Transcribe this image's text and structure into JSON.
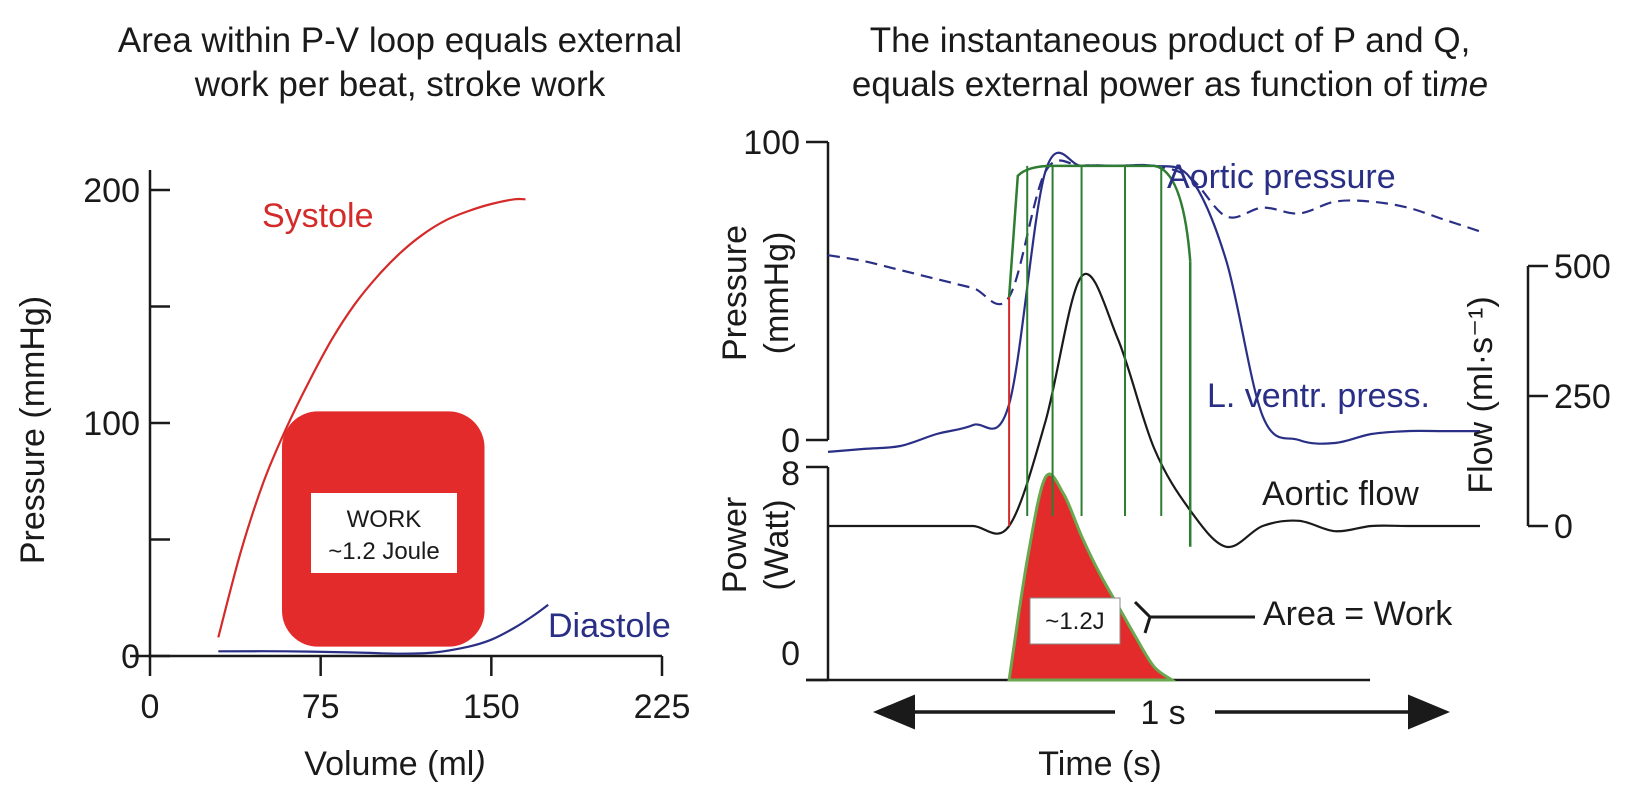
{
  "colors": {
    "axis": "#1a1a1a",
    "systole": "#d42a2a",
    "diastole": "#2a2f86",
    "work_fill": "#e32b2b",
    "pressure": "#2a2f86",
    "flow": "#1a1a1a",
    "ventricle_green": "#2e7d32",
    "power_outline": "#6aa84f"
  },
  "left_panel": {
    "title_line1": "Area within P-V loop equals external",
    "title_line2": "work per beat, stroke work",
    "work_label_line1": "WORK",
    "work_label_line2": "~1.2 Joule"
  },
  "right_panel": {
    "title_line1": "The instantaneous product of P and Q,",
    "title_line2_plain": "equals external power as function of ti",
    "title_line2_italic": "me",
    "label_aortic_pressure": "Aortic pressure",
    "label_lv_pressure": "L. ventr. press.",
    "label_aortic_flow": "Aortic flow",
    "label_area_work": "Area = Work",
    "label_power_value": "~1.2J",
    "duration_label": "1 s",
    "xlabel": "Time (s)"
  },
  "chart_data": [
    {
      "type": "line",
      "panel": "P-V diagram",
      "xlabel_plain": "Volume (ml",
      "xlabel_italic": ")",
      "ylabel": "Pressure (mmHg)",
      "xlim": [
        0,
        225
      ],
      "ylim": [
        0,
        200
      ],
      "x_ticks": [
        0,
        75,
        150,
        225
      ],
      "x_tick_labels": [
        "0",
        "75",
        "150",
        "225"
      ],
      "y_ticks": [
        0,
        50,
        100,
        150,
        200
      ],
      "y_tick_labels": [
        "0",
        "",
        "100",
        "",
        "200"
      ],
      "series": [
        {
          "name": "Systole",
          "x": [
            30,
            40,
            50,
            60,
            70,
            80,
            90,
            100,
            110,
            120,
            130,
            140,
            150,
            160,
            165
          ],
          "y": [
            8,
            45,
            75,
            98,
            118,
            136,
            151,
            163,
            173,
            181,
            187,
            191,
            194,
            196,
            196
          ]
        },
        {
          "name": "Diastole",
          "x": [
            30,
            60,
            90,
            110,
            125,
            140,
            150,
            160,
            168,
            175
          ],
          "y": [
            2,
            2,
            1.5,
            1,
            1.5,
            4,
            7,
            12,
            17,
            22
          ]
        }
      ],
      "work_area": {
        "x_range": [
          58,
          147
        ],
        "y_range": [
          4,
          105
        ],
        "value": "~1.2 Joule"
      }
    },
    {
      "type": "line",
      "panel": "Pressure and flow vs time",
      "ylabel_line1": "Pressure",
      "ylabel_line2": "(mmHg)",
      "y2label": "Flow (ml·s⁻¹)",
      "ylim": [
        0,
        100
      ],
      "y_ticks": [
        0,
        100
      ],
      "y_tick_labels": [
        "0",
        "100"
      ],
      "y2lim": [
        0,
        500
      ],
      "y2_ticks": [
        0,
        250,
        500
      ],
      "y2_tick_labels": [
        "0",
        "250",
        "500"
      ],
      "time_ms": [
        0,
        50,
        100,
        150,
        200,
        250,
        300,
        350,
        400,
        450,
        500,
        550,
        600,
        650,
        700,
        750,
        800,
        850,
        900
      ],
      "series": [
        {
          "name": "Aortic pressure",
          "style": "dashed",
          "y": [
            62,
            60,
            57,
            54,
            51,
            48,
            90,
            92,
            92,
            92,
            88,
            75,
            78,
            76,
            80,
            80,
            78,
            74,
            70
          ]
        },
        {
          "name": "L. ventr. press.",
          "style": "solid",
          "y": [
            -4,
            -3,
            -2,
            2,
            5,
            12,
            90,
            92,
            92,
            92,
            88,
            60,
            8,
            0,
            -1,
            2,
            3,
            3,
            3
          ]
        },
        {
          "name": "Aortic flow",
          "axis": "y2",
          "style": "solid",
          "y": [
            0,
            0,
            0,
            0,
            0,
            0,
            200,
            480,
            360,
            150,
            30,
            -40,
            0,
            10,
            -10,
            0,
            0,
            0,
            0
          ]
        }
      ]
    },
    {
      "type": "area",
      "panel": "Power vs time",
      "ylabel_line1": "Power",
      "ylabel_line2": "(Watt)",
      "ylim": [
        0,
        8
      ],
      "y_ticks": [
        0,
        8
      ],
      "y_tick_labels": [
        "0",
        "8"
      ],
      "time_ms": [
        250,
        275,
        300,
        325,
        350,
        375,
        400,
        425,
        450,
        475
      ],
      "y": [
        0,
        4.5,
        7.6,
        7.0,
        5.4,
        4.0,
        2.8,
        1.6,
        0.5,
        0
      ],
      "area_value": "~1.2J"
    }
  ]
}
